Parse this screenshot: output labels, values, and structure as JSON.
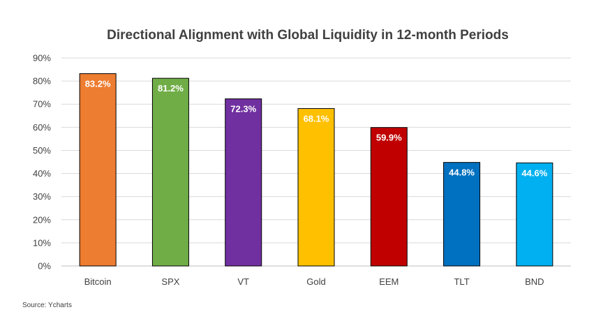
{
  "chart_data": {
    "type": "bar",
    "title": "Directional Alignment with Global Liquidity in 12-month Periods",
    "categories": [
      "Bitcoin",
      "SPX",
      "VT",
      "Gold",
      "EEM",
      "TLT",
      "BND"
    ],
    "values": [
      83.2,
      81.2,
      72.3,
      68.1,
      59.9,
      44.8,
      44.6
    ],
    "data_labels": [
      "83.2%",
      "81.2%",
      "72.3%",
      "68.1%",
      "59.9%",
      "44.8%",
      "44.6%"
    ],
    "colors": [
      "#ed7d31",
      "#70ad47",
      "#7030a0",
      "#ffc000",
      "#c00000",
      "#0070c0",
      "#00b0f0"
    ],
    "ylim": [
      0,
      90
    ],
    "yticks": [
      0,
      10,
      20,
      30,
      40,
      50,
      60,
      70,
      80,
      90
    ],
    "ytick_labels": [
      "0%",
      "10%",
      "20%",
      "30%",
      "40%",
      "50%",
      "60%",
      "70%",
      "80%",
      "90%"
    ],
    "xlabel": "",
    "ylabel": "",
    "grid": true,
    "legend": "none",
    "source": "Source: Ycharts"
  }
}
